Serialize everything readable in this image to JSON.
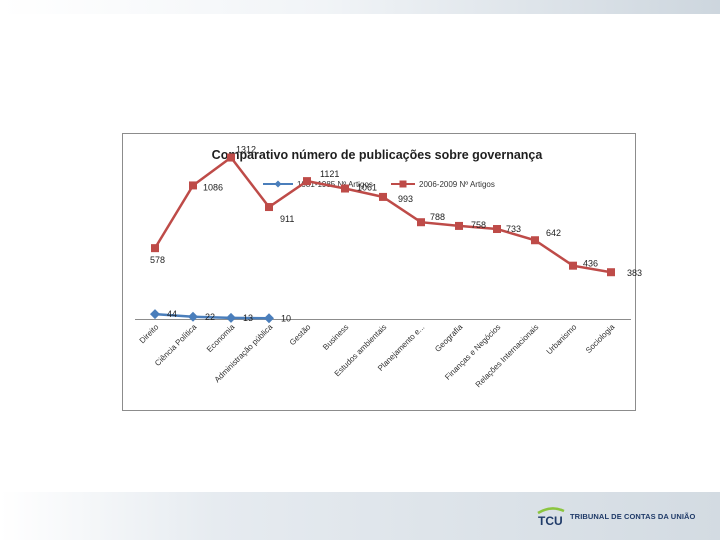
{
  "slide": {
    "logo": {
      "acronym": "TCU",
      "name": "TRIBUNAL DE CONTAS DA UNIÃO"
    }
  },
  "colors": {
    "series1": "#4a7ebb",
    "series2": "#be4b48",
    "axis": "#8c8c8c",
    "logo_blue": "#1f3a68",
    "logo_accent": "#8bc53f"
  },
  "chart_data": {
    "type": "line",
    "title": "Comparativo número de publicações sobre governança",
    "xlabel": "",
    "ylabel": "",
    "legend_position": "top",
    "grid": false,
    "ylim": [
      0,
      1450
    ],
    "categories": [
      "Direito",
      "Ciência Política",
      "Economia",
      "Administração pública",
      "Gestão",
      "Business",
      "Estudos ambientais",
      "Planejamento e...",
      "Geografia",
      "Finanças e Negócios",
      "Relações Internacionais",
      "Urbanismo",
      "Sociologia"
    ],
    "series": [
      {
        "name": "1981-1985 Nº Artigos",
        "marker": "diamond",
        "values": [
          44,
          22,
          13,
          10,
          null,
          null,
          null,
          null,
          null,
          null,
          null,
          null,
          null
        ],
        "labels": [
          "44",
          "22",
          "13",
          "10"
        ]
      },
      {
        "name": "2006-2009 Nº Artigos",
        "marker": "square",
        "values": [
          578,
          1086,
          1312,
          911,
          1121,
          1061,
          993,
          788,
          758,
          733,
          642,
          436,
          383
        ],
        "labels": [
          "578",
          "1086",
          "1312",
          "911",
          "1121",
          "1061",
          "993",
          "788",
          "758",
          "733",
          "642",
          "436",
          "383"
        ]
      }
    ]
  }
}
